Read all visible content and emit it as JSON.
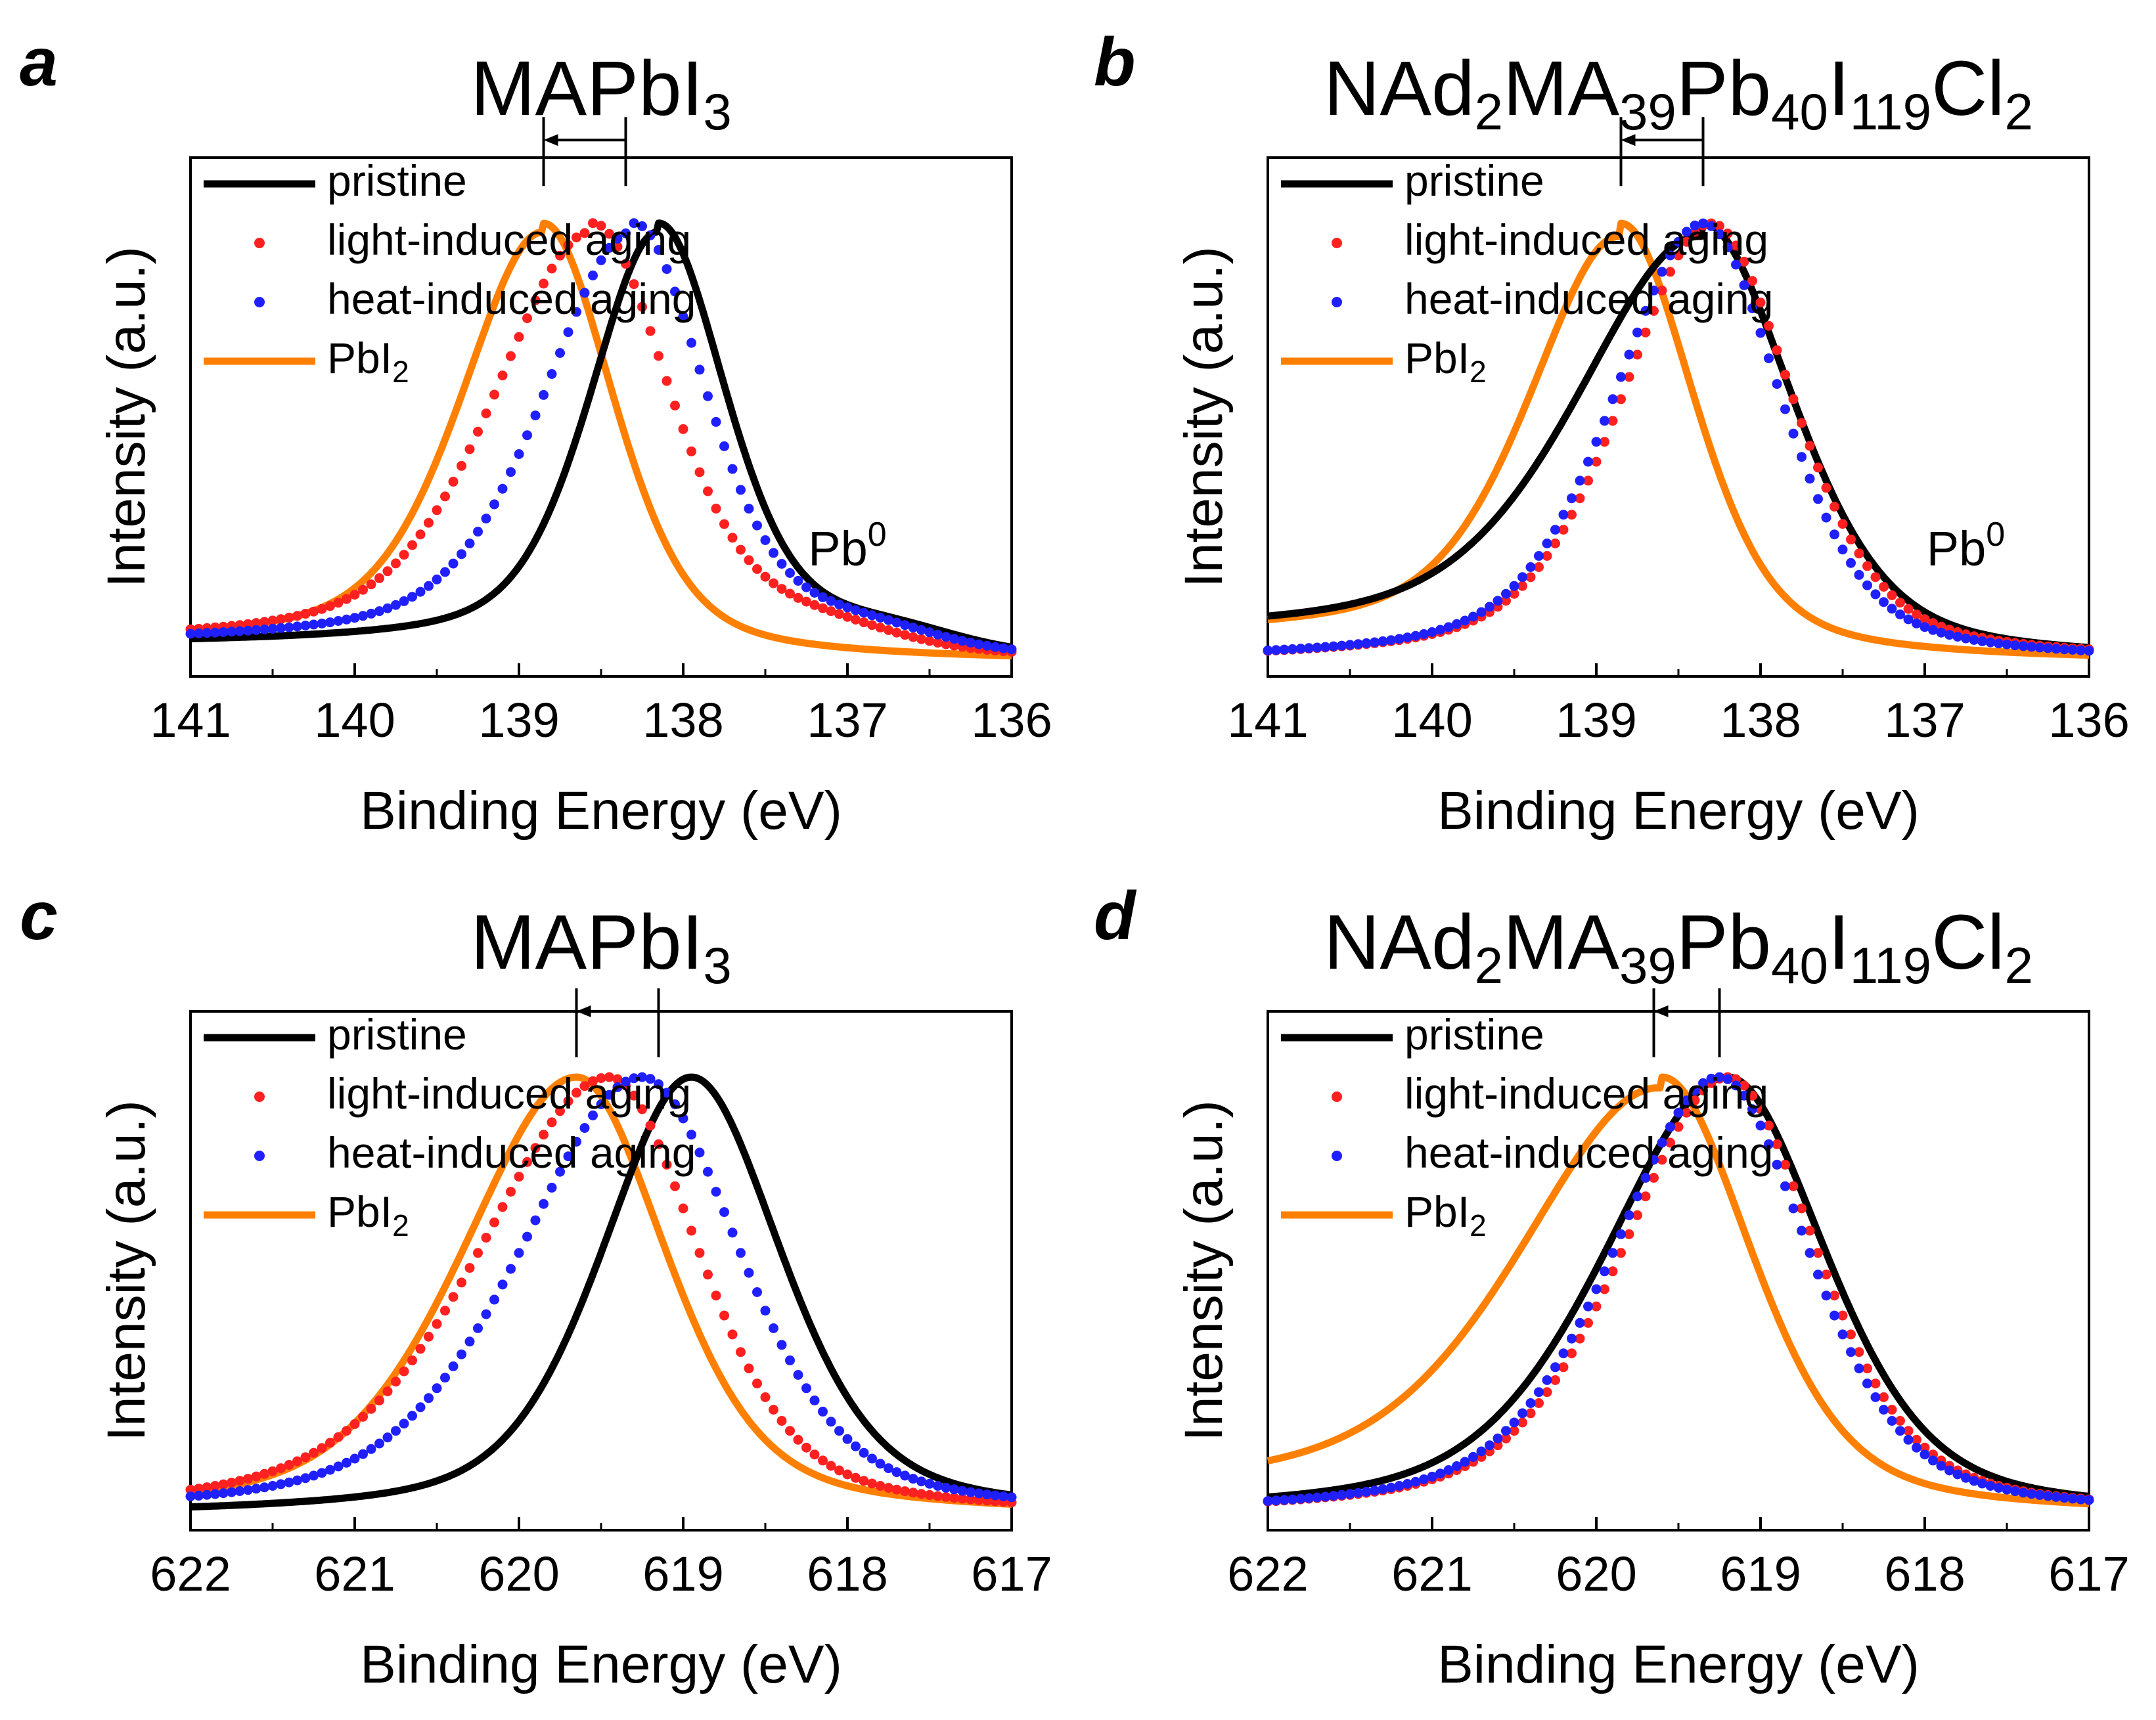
{
  "colors": {
    "pristine": "#000000",
    "light": "#ff2020",
    "heat": "#2020ff",
    "pbi2": "#ff8000"
  },
  "legend_entries": [
    {
      "key": "pristine",
      "label": "pristine",
      "style": "line"
    },
    {
      "key": "light",
      "label": "light-induced aging",
      "style": "dots"
    },
    {
      "key": "heat",
      "label": "heat-induced aging",
      "style": "dots"
    },
    {
      "key": "pbi2",
      "label": "PbI",
      "sub": "2",
      "style": "line"
    }
  ],
  "chart_data": [
    {
      "panel": "a",
      "type": "line",
      "title": "MAPbI3",
      "title_parts": [
        {
          "t": "MAPbI"
        },
        {
          "t": "3",
          "sub": true
        }
      ],
      "xlabel": "Binding Energy (eV)",
      "ylabel": "Intensity (a.u.)",
      "xlim": [
        141,
        136
      ],
      "xticks": [
        141,
        140,
        139,
        138,
        137,
        136
      ],
      "ylim": [
        0,
        1.1
      ],
      "legend_position": "top-left",
      "peaks": {
        "pristine": 138.15,
        "light": 138.55,
        "heat": 138.3,
        "pbi2": 138.85
      },
      "shift_arrow": {
        "from": 138.35,
        "to": 138.85,
        "y": 1.19
      },
      "annotation": {
        "text": "Pb",
        "sup": "0",
        "x": 137.0,
        "y": 0.22
      },
      "series": [
        {
          "name": "pristine",
          "style": "line",
          "peak": 138.15,
          "wl": 0.42,
          "wr": 0.42,
          "base_left": 0.04,
          "base_right": 0.0,
          "bump": 0.05
        },
        {
          "name": "light-induced aging",
          "style": "dots",
          "peak": 138.55,
          "wl": 0.6,
          "wr": 0.48,
          "base_left": 0.04,
          "base_right": 0.0,
          "bump": 0.05
        },
        {
          "name": "heat-induced aging",
          "style": "dots",
          "peak": 138.3,
          "wl": 0.55,
          "wr": 0.45,
          "base_left": 0.04,
          "base_right": 0.0,
          "bump": 0.05
        },
        {
          "name": "PbI2",
          "style": "line",
          "peak": 138.85,
          "wl": 0.5,
          "wr": 0.43,
          "base_left": 0.04,
          "base_right": 0.0,
          "bump": 0.0
        }
      ]
    },
    {
      "panel": "b",
      "type": "line",
      "title": "NAd2MA39Pb40I119Cl2",
      "title_parts": [
        {
          "t": "NAd"
        },
        {
          "t": "2",
          "sub": true
        },
        {
          "t": "MA"
        },
        {
          "t": "39",
          "sub": true
        },
        {
          "t": "Pb"
        },
        {
          "t": "40",
          "sub": true
        },
        {
          "t": "I"
        },
        {
          "t": "119",
          "sub": true
        },
        {
          "t": "Cl"
        },
        {
          "t": "2",
          "sub": true
        }
      ],
      "xlabel": "Binding Energy (eV)",
      "ylabel": "Intensity (a.u.)",
      "xlim": [
        141,
        136
      ],
      "xticks": [
        141,
        140,
        139,
        138,
        137,
        136
      ],
      "ylim": [
        0,
        1.1
      ],
      "legend_position": "top-left",
      "peaks": {
        "pristine": 138.35,
        "light": 138.3,
        "heat": 138.35,
        "pbi2": 138.85
      },
      "shift_arrow": {
        "from": 138.35,
        "to": 138.85,
        "y": 1.19
      },
      "annotation": {
        "text": "Pb",
        "sup": "0",
        "x": 136.75,
        "y": 0.22
      },
      "series": [
        {
          "name": "pristine",
          "style": "line",
          "peak": 138.35,
          "wl": 0.75,
          "wr": 0.55,
          "base_left": 0.06,
          "base_right": 0.0,
          "bump": 0.0
        },
        {
          "name": "light-induced aging",
          "style": "dots",
          "peak": 138.3,
          "wl": 0.55,
          "wr": 0.5,
          "base_left": 0.0,
          "base_right": 0.0,
          "bump": 0.0
        },
        {
          "name": "heat-induced aging",
          "style": "dots",
          "peak": 138.35,
          "wl": 0.55,
          "wr": 0.48,
          "base_left": 0.0,
          "base_right": 0.0,
          "bump": 0.0
        },
        {
          "name": "PbI2",
          "style": "line",
          "peak": 138.85,
          "wl": 0.55,
          "wr": 0.45,
          "base_left": 0.06,
          "base_right": 0.0,
          "bump": 0.0
        }
      ]
    },
    {
      "panel": "c",
      "type": "line",
      "title": "MAPbI3",
      "title_parts": [
        {
          "t": "MAPbI"
        },
        {
          "t": "3",
          "sub": true
        }
      ],
      "xlabel": "Binding Energy (eV)",
      "ylabel": "Intensity (a.u.)",
      "xlim": [
        622,
        617
      ],
      "xticks": [
        622,
        621,
        620,
        619,
        618,
        617
      ],
      "ylim": [
        0,
        1.1
      ],
      "legend_position": "top-left",
      "peaks": {
        "pristine": 618.95,
        "light": 619.45,
        "heat": 619.25,
        "pbi2": 619.65
      },
      "shift_arrow": {
        "from": 619.15,
        "to": 619.65,
        "y": 1.15
      },
      "annotation": null,
      "series": [
        {
          "name": "pristine",
          "style": "line",
          "peak": 618.95,
          "wl": 0.55,
          "wr": 0.55,
          "base_left": 0.0,
          "base_right": 0.0,
          "bump": 0.0
        },
        {
          "name": "light-induced aging",
          "style": "dots",
          "peak": 619.45,
          "wl": 0.8,
          "wr": 0.55,
          "base_left": 0.0,
          "base_right": 0.0,
          "bump": 0.0
        },
        {
          "name": "heat-induced aging",
          "style": "dots",
          "peak": 619.25,
          "wl": 0.75,
          "wr": 0.6,
          "base_left": 0.0,
          "base_right": 0.0,
          "bump": 0.0
        },
        {
          "name": "PbI2",
          "style": "line",
          "peak": 619.65,
          "wl": 0.7,
          "wr": 0.55,
          "base_left": 0.0,
          "base_right": 0.0,
          "bump": 0.0
        }
      ]
    },
    {
      "panel": "d",
      "type": "line",
      "title": "NAd2MA39Pb40I119Cl2",
      "title_parts": [
        {
          "t": "NAd"
        },
        {
          "t": "2",
          "sub": true
        },
        {
          "t": "MA"
        },
        {
          "t": "39",
          "sub": true
        },
        {
          "t": "Pb"
        },
        {
          "t": "40",
          "sub": true
        },
        {
          "t": "I"
        },
        {
          "t": "119",
          "sub": true
        },
        {
          "t": "Cl"
        },
        {
          "t": "2",
          "sub": true
        }
      ],
      "xlabel": "Binding Energy (eV)",
      "ylabel": "Intensity (a.u.)",
      "xlim": [
        622,
        617
      ],
      "xticks": [
        622,
        621,
        620,
        619,
        618,
        617
      ],
      "ylim": [
        0,
        1.1
      ],
      "legend_position": "top-left",
      "peaks": {
        "pristine": 619.2,
        "light": 619.2,
        "heat": 619.25,
        "pbi2": 619.6
      },
      "shift_arrow": {
        "from": 619.25,
        "to": 619.65,
        "y": 1.15
      },
      "annotation": null,
      "series": [
        {
          "name": "pristine",
          "style": "line",
          "peak": 619.2,
          "wl": 0.75,
          "wr": 0.6,
          "base_left": 0.0,
          "base_right": 0.0,
          "bump": 0.0
        },
        {
          "name": "light-induced aging",
          "style": "dots",
          "peak": 619.2,
          "wl": 0.65,
          "wr": 0.55,
          "base_left": 0.0,
          "base_right": 0.0,
          "bump": 0.0
        },
        {
          "name": "heat-induced aging",
          "style": "dots",
          "peak": 619.25,
          "wl": 0.65,
          "wr": 0.55,
          "base_left": 0.0,
          "base_right": 0.0,
          "bump": 0.0
        },
        {
          "name": "PbI2",
          "style": "line",
          "peak": 619.6,
          "wl": 0.85,
          "wr": 0.55,
          "base_left": 0.05,
          "base_right": 0.0,
          "bump": 0.0
        }
      ]
    }
  ]
}
